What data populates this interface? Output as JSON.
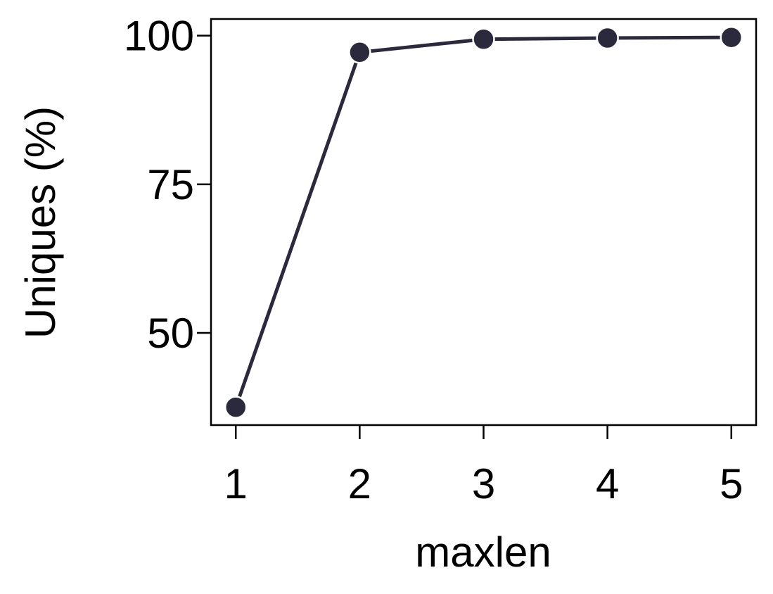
{
  "chart_data": {
    "type": "line",
    "xlabel": "maxlen",
    "ylabel": "Uniques (%)",
    "x": [
      1,
      2,
      3,
      4,
      5
    ],
    "series": [
      {
        "values": [
          37.5,
          97.2,
          99.4,
          99.6,
          99.7
        ],
        "color": "#2b2a3d"
      }
    ],
    "xlim": [
      0.8,
      5.2
    ],
    "ylim": [
      34.5,
      102.8
    ],
    "xticks": [
      "1",
      "2",
      "3",
      "4",
      "5"
    ],
    "yticks": [
      "50",
      "75",
      "100"
    ],
    "grid": false,
    "legend": false
  }
}
